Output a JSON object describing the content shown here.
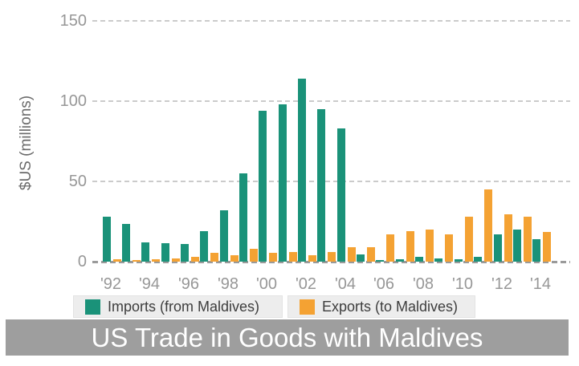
{
  "colors": {
    "background": "#ffffff",
    "imports_series": "#1a9279",
    "exports_series": "#f4a233",
    "axis_text": "#979797",
    "gridline": "#cbcbcb",
    "baseline": "#9a9a9a",
    "legend_bg": "#ededed",
    "legend_text": "#3d3d3d",
    "title_bar_bg": "#9e9e9e",
    "title_text": "#ffffff"
  },
  "chart_data": {
    "type": "bar",
    "title": "US Trade in Goods with Maldives",
    "xlabel": "",
    "ylabel": "$US (millions)",
    "ylim": [
      0,
      150
    ],
    "yticks": [
      0,
      50,
      100,
      150
    ],
    "grid": "horizontal dashed gridlines on, vertical off",
    "legend_position": "bottom",
    "categories": [
      "1992",
      "1993",
      "1994",
      "1995",
      "1996",
      "1997",
      "1998",
      "1999",
      "2000",
      "2001",
      "2002",
      "2003",
      "2004",
      "2005",
      "2006",
      "2007",
      "2008",
      "2009",
      "2010",
      "2011",
      "2012",
      "2013",
      "2014"
    ],
    "x_tick_labels": [
      "'92",
      "'94",
      "'96",
      "'98",
      "'00",
      "'02",
      "'04",
      "'06",
      "'08",
      "'10",
      "'12",
      "'14"
    ],
    "x_tick_every": 2,
    "series": [
      {
        "name": "Imports (from Maldives)",
        "color": "#1a9279",
        "values": [
          28,
          23.5,
          12,
          11.5,
          11,
          19,
          32,
          55,
          94,
          98,
          114,
          95,
          83,
          4.5,
          1,
          1.5,
          3,
          2,
          1.5,
          3,
          17,
          20,
          14
        ]
      },
      {
        "name": "Exports (to Maldives)",
        "color": "#f4a233",
        "values": [
          1.5,
          1,
          1.5,
          2,
          3,
          5.5,
          4,
          8,
          5.5,
          6,
          4,
          6,
          9,
          9,
          17,
          19,
          20,
          17,
          28,
          45,
          29.5,
          28,
          18.5
        ]
      }
    ]
  }
}
